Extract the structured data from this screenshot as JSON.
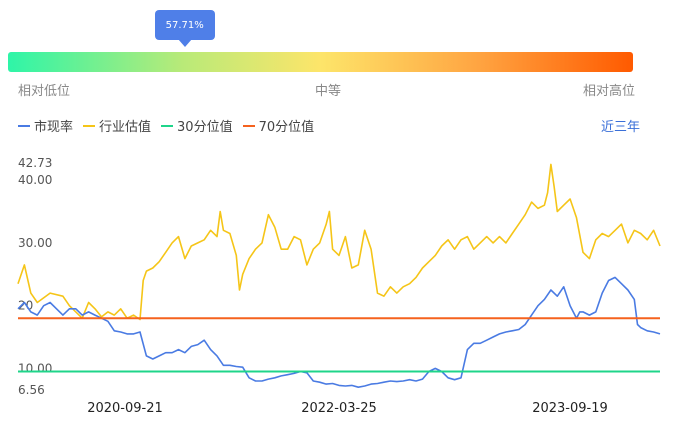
{
  "gauge": {
    "value_label": "57.71%",
    "value": 0.5771,
    "low_label": "相对低位",
    "mid_label": "中等",
    "high_label": "相对高位"
  },
  "legend": {
    "items": [
      {
        "label": "市现率",
        "color": "#4a7be3"
      },
      {
        "label": "行业估值",
        "color": "#f5c518"
      },
      {
        "label": "30分位值",
        "color": "#1fd58a"
      },
      {
        "label": "70分位值",
        "color": "#f5621e"
      }
    ]
  },
  "range_link": "近三年",
  "chart_data": {
    "type": "line",
    "x_ticks": [
      "2020-09-21",
      "2022-03-25",
      "2023-09-19"
    ],
    "y_ticks": [
      6.56,
      10.0,
      20,
      30.0,
      40.0,
      42.73
    ],
    "y_tick_labels": [
      "6.56",
      "10.00",
      "20",
      "30.00",
      "40.00",
      "42.73"
    ],
    "ylim": [
      6.56,
      42.73
    ],
    "reference_lines": [
      {
        "name": "30分位值",
        "value": 9.5,
        "color": "#1fd58a"
      },
      {
        "name": "70分位值",
        "value": 18.0,
        "color": "#f5621e"
      }
    ],
    "series": [
      {
        "name": "行业估值",
        "color": "#f5c518",
        "points": [
          [
            0,
            23.5
          ],
          [
            0.01,
            26.5
          ],
          [
            0.02,
            22
          ],
          [
            0.03,
            20.5
          ],
          [
            0.05,
            22
          ],
          [
            0.07,
            21.5
          ],
          [
            0.08,
            20
          ],
          [
            0.09,
            19
          ],
          [
            0.1,
            18
          ],
          [
            0.11,
            20.5
          ],
          [
            0.12,
            19.5
          ],
          [
            0.13,
            18.2
          ],
          [
            0.14,
            19
          ],
          [
            0.15,
            18.5
          ],
          [
            0.16,
            19.5
          ],
          [
            0.17,
            18
          ],
          [
            0.18,
            18.5
          ],
          [
            0.19,
            17.8
          ],
          [
            0.195,
            24
          ],
          [
            0.2,
            25.5
          ],
          [
            0.21,
            26
          ],
          [
            0.22,
            27
          ],
          [
            0.23,
            28.5
          ],
          [
            0.24,
            30
          ],
          [
            0.25,
            31
          ],
          [
            0.26,
            27.5
          ],
          [
            0.27,
            29.5
          ],
          [
            0.28,
            30
          ],
          [
            0.29,
            30.5
          ],
          [
            0.3,
            32
          ],
          [
            0.31,
            31
          ],
          [
            0.315,
            35
          ],
          [
            0.32,
            32
          ],
          [
            0.33,
            31.5
          ],
          [
            0.34,
            28
          ],
          [
            0.345,
            22.5
          ],
          [
            0.35,
            25
          ],
          [
            0.36,
            27.5
          ],
          [
            0.37,
            29
          ],
          [
            0.38,
            30
          ],
          [
            0.39,
            34.5
          ],
          [
            0.4,
            32.5
          ],
          [
            0.41,
            29
          ],
          [
            0.42,
            29
          ],
          [
            0.43,
            31
          ],
          [
            0.44,
            30.5
          ],
          [
            0.45,
            26.5
          ],
          [
            0.46,
            29
          ],
          [
            0.47,
            30
          ],
          [
            0.48,
            33
          ],
          [
            0.485,
            35
          ],
          [
            0.49,
            29
          ],
          [
            0.5,
            28
          ],
          [
            0.51,
            31
          ],
          [
            0.52,
            26
          ],
          [
            0.53,
            26.5
          ],
          [
            0.54,
            32
          ],
          [
            0.55,
            29
          ],
          [
            0.56,
            22
          ],
          [
            0.57,
            21.5
          ],
          [
            0.58,
            23
          ],
          [
            0.59,
            22
          ],
          [
            0.6,
            23
          ],
          [
            0.61,
            23.5
          ],
          [
            0.62,
            24.5
          ],
          [
            0.63,
            26
          ],
          [
            0.64,
            27
          ],
          [
            0.65,
            28
          ],
          [
            0.66,
            29.5
          ],
          [
            0.67,
            30.5
          ],
          [
            0.68,
            29
          ],
          [
            0.69,
            30.5
          ],
          [
            0.7,
            31
          ],
          [
            0.71,
            29
          ],
          [
            0.72,
            30
          ],
          [
            0.73,
            31
          ],
          [
            0.74,
            30
          ],
          [
            0.75,
            31
          ],
          [
            0.76,
            30
          ],
          [
            0.77,
            31.5
          ],
          [
            0.78,
            33
          ],
          [
            0.79,
            34.5
          ],
          [
            0.8,
            36.5
          ],
          [
            0.81,
            35.5
          ],
          [
            0.82,
            36
          ],
          [
            0.825,
            38
          ],
          [
            0.83,
            42.5
          ],
          [
            0.835,
            39
          ],
          [
            0.84,
            35
          ],
          [
            0.85,
            36
          ],
          [
            0.86,
            37
          ],
          [
            0.87,
            34
          ],
          [
            0.88,
            28.5
          ],
          [
            0.89,
            27.5
          ],
          [
            0.9,
            30.5
          ],
          [
            0.91,
            31.5
          ],
          [
            0.92,
            31
          ],
          [
            0.93,
            32
          ],
          [
            0.94,
            33
          ],
          [
            0.95,
            30
          ],
          [
            0.96,
            32
          ],
          [
            0.97,
            31.5
          ],
          [
            0.98,
            30.5
          ],
          [
            0.99,
            32
          ],
          [
            1.0,
            29.5
          ]
        ]
      },
      {
        "name": "市现率",
        "color": "#4a7be3",
        "points": [
          [
            0,
            19.5
          ],
          [
            0.01,
            20.5
          ],
          [
            0.02,
            19
          ],
          [
            0.03,
            18.5
          ],
          [
            0.04,
            20
          ],
          [
            0.05,
            20.5
          ],
          [
            0.06,
            19.5
          ],
          [
            0.07,
            18.5
          ],
          [
            0.08,
            19.5
          ],
          [
            0.09,
            19.5
          ],
          [
            0.1,
            18.5
          ],
          [
            0.11,
            19
          ],
          [
            0.12,
            18.5
          ],
          [
            0.13,
            18
          ],
          [
            0.14,
            17.5
          ],
          [
            0.15,
            16
          ],
          [
            0.16,
            15.8
          ],
          [
            0.17,
            15.5
          ],
          [
            0.18,
            15.5
          ],
          [
            0.19,
            15.8
          ],
          [
            0.2,
            12
          ],
          [
            0.21,
            11.5
          ],
          [
            0.22,
            12
          ],
          [
            0.23,
            12.5
          ],
          [
            0.24,
            12.5
          ],
          [
            0.25,
            13
          ],
          [
            0.26,
            12.5
          ],
          [
            0.27,
            13.5
          ],
          [
            0.28,
            13.8
          ],
          [
            0.29,
            14.5
          ],
          [
            0.3,
            13
          ],
          [
            0.31,
            12
          ],
          [
            0.32,
            10.5
          ],
          [
            0.33,
            10.5
          ],
          [
            0.34,
            10.3
          ],
          [
            0.35,
            10.2
          ],
          [
            0.36,
            8.5
          ],
          [
            0.37,
            8
          ],
          [
            0.38,
            8
          ],
          [
            0.39,
            8.3
          ],
          [
            0.4,
            8.5
          ],
          [
            0.41,
            8.8
          ],
          [
            0.42,
            9
          ],
          [
            0.43,
            9.2
          ],
          [
            0.44,
            9.5
          ],
          [
            0.45,
            9.3
          ],
          [
            0.46,
            8
          ],
          [
            0.47,
            7.8
          ],
          [
            0.48,
            7.5
          ],
          [
            0.49,
            7.6
          ],
          [
            0.5,
            7.3
          ],
          [
            0.51,
            7.2
          ],
          [
            0.52,
            7.3
          ],
          [
            0.53,
            7
          ],
          [
            0.54,
            7.2
          ],
          [
            0.55,
            7.5
          ],
          [
            0.56,
            7.6
          ],
          [
            0.57,
            7.8
          ],
          [
            0.58,
            8
          ],
          [
            0.59,
            7.9
          ],
          [
            0.6,
            8
          ],
          [
            0.61,
            8.2
          ],
          [
            0.62,
            8
          ],
          [
            0.63,
            8.3
          ],
          [
            0.64,
            9.5
          ],
          [
            0.65,
            10
          ],
          [
            0.66,
            9.5
          ],
          [
            0.67,
            8.5
          ],
          [
            0.68,
            8.2
          ],
          [
            0.69,
            8.5
          ],
          [
            0.7,
            13
          ],
          [
            0.71,
            14
          ],
          [
            0.72,
            14
          ],
          [
            0.73,
            14.5
          ],
          [
            0.74,
            15
          ],
          [
            0.75,
            15.5
          ],
          [
            0.76,
            15.8
          ],
          [
            0.77,
            16
          ],
          [
            0.78,
            16.2
          ],
          [
            0.79,
            17
          ],
          [
            0.8,
            18.5
          ],
          [
            0.81,
            20
          ],
          [
            0.82,
            21
          ],
          [
            0.83,
            22.5
          ],
          [
            0.84,
            21.5
          ],
          [
            0.85,
            23
          ],
          [
            0.86,
            20
          ],
          [
            0.87,
            18
          ],
          [
            0.875,
            19
          ],
          [
            0.88,
            19
          ],
          [
            0.89,
            18.5
          ],
          [
            0.9,
            19
          ],
          [
            0.91,
            22
          ],
          [
            0.92,
            24
          ],
          [
            0.93,
            24.5
          ],
          [
            0.94,
            23.5
          ],
          [
            0.95,
            22.5
          ],
          [
            0.96,
            21
          ],
          [
            0.965,
            17
          ],
          [
            0.97,
            16.5
          ],
          [
            0.98,
            16
          ],
          [
            0.99,
            15.8
          ],
          [
            1.0,
            15.5
          ]
        ]
      }
    ]
  }
}
